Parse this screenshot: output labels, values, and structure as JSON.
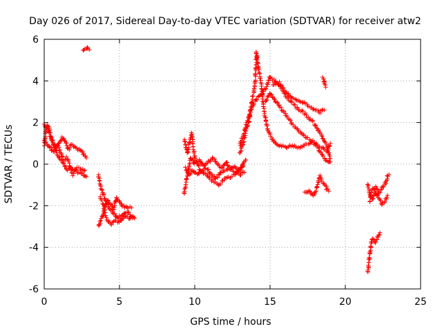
{
  "chart_data": {
    "type": "scatter",
    "title": "Day 026 of 2017, Sidereal Day-to-day VTEC variation (SDTVAR) for receiver atw2",
    "xlabel": "GPS time / hours",
    "ylabel": "SDTVAR / TECUs",
    "xlim": [
      0,
      25
    ],
    "ylim": [
      -6,
      6
    ],
    "xticks": [
      0,
      5,
      10,
      15,
      20,
      25
    ],
    "yticks": [
      -6,
      -4,
      -2,
      0,
      2,
      4,
      6
    ],
    "xtick_labels": [
      "0",
      "5",
      "10",
      "15",
      "20",
      "25"
    ],
    "ytick_labels": [
      "-6",
      "-4",
      "-2",
      "0",
      "2",
      "4",
      "6"
    ],
    "grid": true,
    "marker": "+",
    "color": "#ff0000",
    "series": [
      {
        "name": "atw2 SDTVAR",
        "tracks": [
          [
            [
              0.0,
              0.9
            ],
            [
              0.1,
              1.5
            ],
            [
              0.2,
              1.9
            ],
            [
              0.3,
              1.8
            ],
            [
              0.5,
              1.2
            ],
            [
              0.7,
              0.8
            ],
            [
              0.9,
              0.4
            ],
            [
              1.1,
              0.2
            ],
            [
              1.3,
              0.0
            ],
            [
              1.5,
              -0.3
            ],
            [
              1.8,
              -0.2
            ],
            [
              2.0,
              -0.3
            ],
            [
              2.3,
              -0.4
            ],
            [
              2.6,
              -0.5
            ],
            [
              2.8,
              -0.6
            ]
          ],
          [
            [
              0.0,
              1.9
            ],
            [
              0.2,
              1.7
            ],
            [
              0.4,
              1.4
            ],
            [
              0.6,
              1.0
            ],
            [
              0.8,
              0.8
            ],
            [
              1.0,
              1.0
            ],
            [
              1.2,
              1.3
            ],
            [
              1.4,
              1.1
            ],
            [
              1.6,
              0.7
            ],
            [
              1.8,
              0.9
            ],
            [
              2.0,
              0.8
            ],
            [
              2.3,
              0.7
            ],
            [
              2.6,
              0.5
            ],
            [
              2.8,
              0.3
            ]
          ],
          [
            [
              0.0,
              1.1
            ],
            [
              0.3,
              0.9
            ],
            [
              0.6,
              0.6
            ],
            [
              0.9,
              0.9
            ],
            [
              1.1,
              0.5
            ],
            [
              1.3,
              0.2
            ],
            [
              1.5,
              0.3
            ],
            [
              1.7,
              -0.1
            ],
            [
              1.9,
              -0.5
            ],
            [
              2.1,
              -0.2
            ],
            [
              2.4,
              -0.2
            ],
            [
              2.7,
              -0.3
            ]
          ],
          [
            [
              2.6,
              5.5
            ],
            [
              2.8,
              5.6
            ],
            [
              3.0,
              5.5
            ]
          ],
          [
            [
              3.6,
              -0.5
            ],
            [
              3.8,
              -1.2
            ],
            [
              4.0,
              -1.6
            ],
            [
              4.3,
              -2.1
            ],
            [
              4.6,
              -2.4
            ],
            [
              4.9,
              -2.6
            ],
            [
              5.2,
              -2.4
            ],
            [
              5.5,
              -2.3
            ],
            [
              5.8,
              -2.5
            ],
            [
              6.0,
              -2.6
            ]
          ],
          [
            [
              3.6,
              -3.0
            ],
            [
              3.8,
              -2.6
            ],
            [
              4.0,
              -2.2
            ],
            [
              4.2,
              -1.7
            ],
            [
              4.4,
              -1.9
            ],
            [
              4.6,
              -2.2
            ],
            [
              4.8,
              -1.6
            ],
            [
              5.0,
              -1.8
            ],
            [
              5.2,
              -2.0
            ],
            [
              5.5,
              -2.1
            ],
            [
              5.8,
              -2.1
            ]
          ],
          [
            [
              3.7,
              -1.6
            ],
            [
              3.9,
              -1.9
            ],
            [
              4.1,
              -2.6
            ],
            [
              4.4,
              -2.9
            ],
            [
              4.7,
              -2.7
            ],
            [
              5.0,
              -2.8
            ],
            [
              5.3,
              -2.5
            ],
            [
              5.6,
              -2.6
            ],
            [
              5.9,
              -2.5
            ]
          ],
          [
            [
              9.3,
              1.2
            ],
            [
              9.5,
              0.5
            ],
            [
              9.8,
              1.5
            ],
            [
              10.0,
              0.3
            ],
            [
              10.3,
              -0.2
            ],
            [
              10.6,
              -0.4
            ],
            [
              10.9,
              -0.6
            ],
            [
              11.2,
              -0.8
            ],
            [
              11.6,
              -1.0
            ],
            [
              12.0,
              -0.7
            ],
            [
              12.4,
              -0.6
            ],
            [
              12.8,
              -0.4
            ],
            [
              13.1,
              -0.2
            ],
            [
              13.4,
              0.2
            ]
          ],
          [
            [
              9.3,
              -1.4
            ],
            [
              9.5,
              -0.6
            ],
            [
              9.7,
              0.3
            ],
            [
              10.0,
              0.0
            ],
            [
              10.3,
              0.2
            ],
            [
              10.6,
              -0.1
            ],
            [
              10.9,
              0.1
            ],
            [
              11.2,
              0.3
            ],
            [
              11.5,
              0.0
            ],
            [
              11.8,
              -0.2
            ],
            [
              12.1,
              0.1
            ],
            [
              12.4,
              -0.3
            ],
            [
              12.7,
              -0.4
            ],
            [
              13.0,
              -0.5
            ],
            [
              13.3,
              -0.4
            ]
          ],
          [
            [
              9.4,
              -0.2
            ],
            [
              9.6,
              -0.5
            ],
            [
              9.9,
              -0.3
            ],
            [
              10.2,
              -0.5
            ],
            [
              10.5,
              -0.3
            ],
            [
              10.8,
              -0.2
            ],
            [
              11.1,
              -0.5
            ],
            [
              11.4,
              -0.7
            ],
            [
              11.7,
              -0.4
            ],
            [
              12.0,
              -0.3
            ],
            [
              12.3,
              -0.2
            ],
            [
              12.6,
              -0.1
            ],
            [
              12.9,
              -0.3
            ],
            [
              13.2,
              0.0
            ]
          ],
          [
            [
              13.0,
              0.5
            ],
            [
              13.2,
              1.0
            ],
            [
              13.4,
              1.6
            ],
            [
              13.6,
              2.1
            ],
            [
              13.8,
              3.0
            ],
            [
              14.0,
              3.8
            ],
            [
              14.1,
              5.4
            ],
            [
              14.2,
              4.8
            ],
            [
              14.4,
              3.9
            ],
            [
              14.6,
              2.5
            ],
            [
              14.8,
              1.8
            ],
            [
              15.0,
              1.4
            ],
            [
              15.3,
              1.0
            ],
            [
              15.6,
              0.9
            ],
            [
              16.0,
              0.8
            ],
            [
              16.4,
              0.9
            ],
            [
              16.8,
              0.8
            ],
            [
              17.2,
              0.9
            ],
            [
              17.6,
              1.0
            ],
            [
              18.0,
              1.0
            ],
            [
              18.4,
              0.8
            ],
            [
              18.8,
              0.6
            ],
            [
              19.0,
              1.0
            ]
          ],
          [
            [
              13.0,
              0.9
            ],
            [
              13.3,
              1.6
            ],
            [
              13.6,
              2.3
            ],
            [
              13.9,
              2.9
            ],
            [
              14.2,
              3.2
            ],
            [
              14.5,
              3.4
            ],
            [
              14.8,
              3.8
            ],
            [
              15.0,
              4.2
            ],
            [
              15.3,
              4.0
            ],
            [
              15.6,
              3.8
            ],
            [
              16.0,
              3.3
            ],
            [
              16.4,
              3.0
            ],
            [
              16.8,
              2.7
            ],
            [
              17.2,
              2.5
            ],
            [
              17.6,
              2.2
            ],
            [
              18.0,
              1.9
            ],
            [
              18.4,
              1.4
            ],
            [
              18.8,
              0.9
            ],
            [
              19.0,
              0.1
            ]
          ],
          [
            [
              14.7,
              3.0
            ],
            [
              15.0,
              3.4
            ],
            [
              15.3,
              3.1
            ],
            [
              15.6,
              2.8
            ],
            [
              16.0,
              2.4
            ],
            [
              16.4,
              2.0
            ],
            [
              16.8,
              1.7
            ],
            [
              17.2,
              1.4
            ],
            [
              17.6,
              1.2
            ],
            [
              18.0,
              1.0
            ],
            [
              18.4,
              0.5
            ],
            [
              18.7,
              0.2
            ],
            [
              18.9,
              0.1
            ]
          ],
          [
            [
              15.2,
              3.8
            ],
            [
              15.6,
              3.9
            ],
            [
              16.0,
              3.5
            ],
            [
              16.4,
              3.2
            ],
            [
              16.8,
              3.1
            ],
            [
              17.2,
              3.0
            ],
            [
              17.6,
              2.8
            ],
            [
              18.0,
              2.6
            ],
            [
              18.3,
              2.5
            ],
            [
              18.6,
              2.6
            ]
          ],
          [
            [
              18.5,
              4.2
            ],
            [
              18.6,
              3.9
            ],
            [
              18.7,
              3.7
            ]
          ],
          [
            [
              17.3,
              -1.4
            ],
            [
              17.6,
              -1.3
            ],
            [
              17.9,
              -1.5
            ],
            [
              18.1,
              -1.2
            ],
            [
              18.3,
              -0.6
            ],
            [
              18.5,
              -0.9
            ],
            [
              18.7,
              -1.1
            ],
            [
              18.9,
              -1.3
            ]
          ],
          [
            [
              21.5,
              -5.2
            ],
            [
              21.6,
              -4.5
            ],
            [
              21.7,
              -3.9
            ],
            [
              21.8,
              -3.6
            ],
            [
              22.0,
              -3.8
            ],
            [
              22.2,
              -3.4
            ],
            [
              22.3,
              -3.3
            ]
          ],
          [
            [
              21.5,
              -1.0
            ],
            [
              21.6,
              -1.4
            ],
            [
              21.8,
              -1.7
            ],
            [
              22.0,
              -1.3
            ],
            [
              22.2,
              -1.6
            ],
            [
              22.4,
              -1.9
            ],
            [
              22.6,
              -1.8
            ],
            [
              22.8,
              -1.5
            ]
          ],
          [
            [
              21.6,
              -1.8
            ],
            [
              21.8,
              -1.2
            ],
            [
              22.0,
              -1.1
            ],
            [
              22.2,
              -1.4
            ],
            [
              22.4,
              -1.2
            ],
            [
              22.6,
              -1.0
            ],
            [
              22.8,
              -0.6
            ],
            [
              22.9,
              -0.5
            ]
          ]
        ]
      }
    ]
  }
}
